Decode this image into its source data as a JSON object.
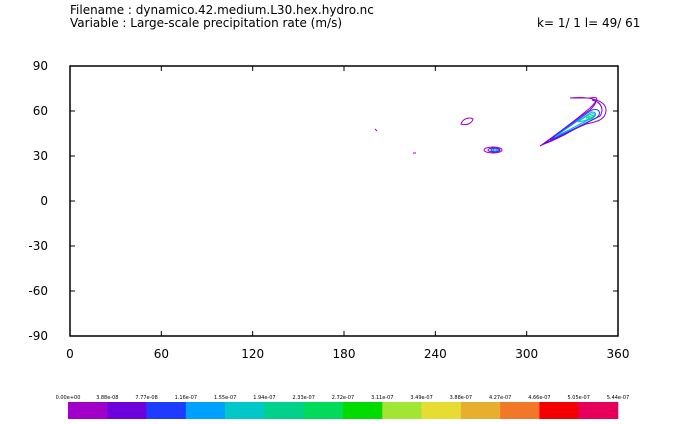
{
  "header": {
    "filename_line": "Filename : dynamico.42.medium.L30.hex.hydro.nc",
    "variable_line": "Variable : Large-scale precipitation rate (m/s)",
    "index_line": "k= 1/ 1 l= 49/ 61"
  },
  "chart_data": {
    "type": "contour",
    "title": "",
    "xlabel": "",
    "ylabel": "",
    "xlim": [
      0,
      360
    ],
    "ylim": [
      -90,
      90
    ],
    "xticks": [
      "0",
      "60",
      "120",
      "180",
      "240",
      "300",
      "360"
    ],
    "yticks": [
      "90",
      "60",
      "30",
      "0",
      "-30",
      "-60",
      "-90"
    ],
    "grid": false,
    "legend": "colorbar-bottom",
    "colorbar": {
      "labels": [
        "0.00e+00",
        "3.88e-08",
        "7.77e-08",
        "1.16e-07",
        "1.55e-07",
        "1.94e-07",
        "2.33e-07",
        "2.72e-07",
        "3.11e-07",
        "3.49e-07",
        "3.88e-07",
        "4.27e-07",
        "4.66e-07",
        "5.05e-07",
        "5.44e-07"
      ],
      "colors": [
        "#a000c8",
        "#6e00dc",
        "#1e3cff",
        "#00a0ff",
        "#00c8c8",
        "#00d28c",
        "#00dc5a",
        "#00dc00",
        "#a0e632",
        "#e6dc32",
        "#e6af2d",
        "#f07828",
        "#f50000",
        "#e6005a"
      ]
    },
    "features": [
      {
        "name": "arctic-band",
        "lon_range": [
          300,
          360
        ],
        "lat_range": [
          36,
          68
        ],
        "peak_color": "#00c8c8"
      },
      {
        "name": "north-atlantic-blob",
        "lon": 280,
        "lat": 34,
        "peak_color": "#00a0ff"
      },
      {
        "name": "canada-loop",
        "lon": 262,
        "lat": 52,
        "peak_color": "#a000c8"
      },
      {
        "name": "pacific-speck",
        "lon": 201,
        "lat": 48,
        "peak_color": "#a000c8"
      },
      {
        "name": "mid-speck",
        "lon": 228,
        "lat": 33,
        "peak_color": "#a000c8"
      }
    ]
  }
}
